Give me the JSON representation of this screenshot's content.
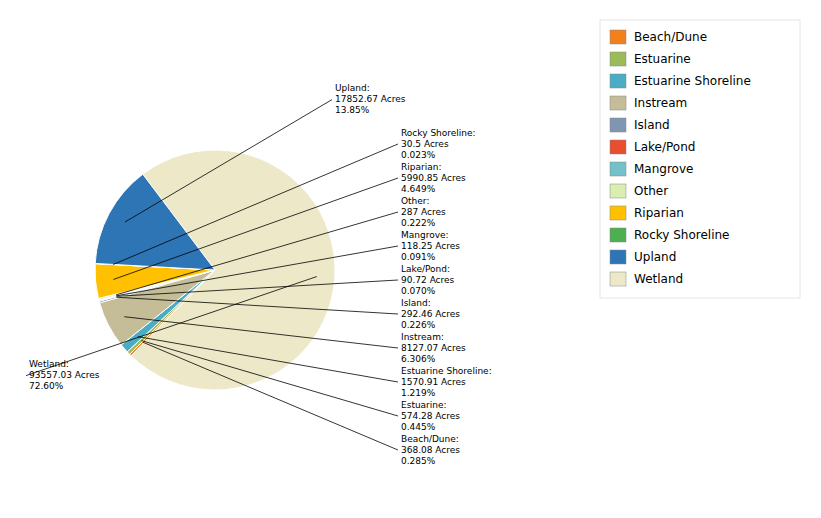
{
  "chart_data": {
    "type": "pie",
    "categories": [
      "Wetland",
      "Beach/Dune",
      "Estuarine",
      "Estuarine Shoreline",
      "Instream",
      "Island",
      "Lake/Pond",
      "Mangrove",
      "Other",
      "Riparian",
      "Rocky Shoreline",
      "Upland"
    ],
    "values": [
      93557.03,
      368.08,
      574.28,
      1570.91,
      8127.07,
      292.46,
      90.72,
      118.25,
      287,
      5990.85,
      30.5,
      17852.67
    ],
    "value_labels": [
      "93557.03 Acres",
      "368.08 Acres",
      "574.28 Acres",
      "1570.91 Acres",
      "8127.07 Acres",
      "292.46 Acres",
      "90.72 Acres",
      "118.25 Acres",
      "287 Acres",
      "5990.85 Acres",
      "30.5 Acres",
      "17852.67 Acres"
    ],
    "percentages": [
      72.6,
      0.285,
      0.445,
      1.219,
      6.306,
      0.226,
      0.07,
      0.091,
      0.222,
      4.649,
      0.023,
      13.85
    ],
    "percentage_labels": [
      "72.60%",
      "0.285%",
      "0.445%",
      "1.219%",
      "6.306%",
      "0.226%",
      "0.070%",
      "0.091%",
      "0.222%",
      "4.649%",
      "0.023%",
      "13.85%"
    ],
    "annotation_titles": [
      "Wetland:",
      "Beach/Dune:",
      "Estuarine:",
      "Estuarine Shoreline:",
      "Instream:",
      "Island:",
      "Lake/Pond:",
      "Mangrove:",
      "Other:",
      "Riparian:",
      "Rocky Shoreline:",
      "Upland:"
    ],
    "colors": [
      "#EDE9C8",
      "#F2811D",
      "#9BBB59",
      "#4BACC6",
      "#C4BD97",
      "#7F96B2",
      "#E94E2E",
      "#73C2CA",
      "#DAEEB2",
      "#FFC000",
      "#4CAF50",
      "#2E75B6"
    ],
    "legend_labels": [
      "Beach/Dune",
      "Estuarine",
      "Estuarine Shoreline",
      "Instream",
      "Island",
      "Lake/Pond",
      "Mangrove",
      "Other",
      "Riparian",
      "Rocky Shoreline",
      "Upland",
      "Wetland"
    ],
    "legend": "right",
    "data_labels": true
  }
}
